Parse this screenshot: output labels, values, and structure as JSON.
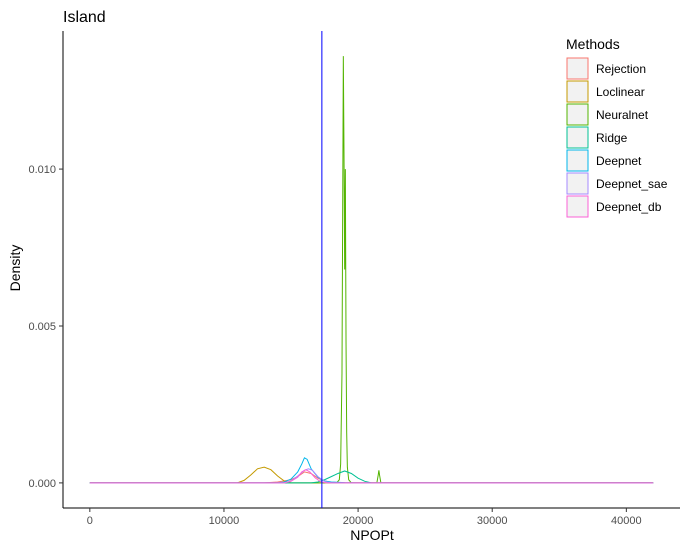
{
  "chart_data": {
    "type": "line",
    "title": "Island",
    "xlabel": "NPOPt",
    "ylabel": "Density",
    "xlim": [
      -2000,
      44000
    ],
    "ylim": [
      -0.0008,
      0.0144
    ],
    "xticks": [
      0,
      10000,
      20000,
      30000,
      40000
    ],
    "xtick_labels": [
      "0",
      "10000",
      "20000",
      "30000",
      "40000"
    ],
    "yticks": [
      0.0,
      0.005,
      0.01
    ],
    "ytick_labels": [
      "0.000",
      "0.005",
      "0.010"
    ],
    "grid": false,
    "legend_title": "Methods",
    "legend_position": "top-right",
    "reference_line": {
      "x": 17300,
      "color": "#0000ff"
    },
    "series": [
      {
        "name": "Rejection",
        "color": "#F8766D",
        "x": [
          0,
          13000,
          14000,
          15000,
          15500,
          16000,
          16500,
          17000,
          17500,
          18000,
          19000,
          42000
        ],
        "y": [
          0,
          0,
          3e-05,
          0.0001,
          0.0002,
          0.00035,
          0.0003,
          0.00015,
          6e-05,
          2e-05,
          0,
          0
        ]
      },
      {
        "name": "Loclinear",
        "color": "#C49A00",
        "x": [
          0,
          11000,
          11500,
          12000,
          12500,
          13000,
          13500,
          14000,
          14500,
          15000,
          42000
        ],
        "y": [
          0,
          0,
          8e-05,
          0.00025,
          0.00045,
          0.0005,
          0.00042,
          0.00022,
          6e-05,
          0,
          0
        ]
      },
      {
        "name": "Neuralnet",
        "color": "#53B400",
        "x": [
          0,
          18400,
          18600,
          18700,
          18800,
          18850,
          18900,
          18950,
          19000,
          19050,
          19100,
          19150,
          19200,
          19300,
          19500,
          21400,
          21500,
          21550,
          21600,
          21700,
          42000
        ],
        "y": [
          0,
          0,
          0.0001,
          0.0006,
          0.0035,
          0.0085,
          0.0136,
          0.0105,
          0.0068,
          0.01,
          0.0045,
          0.0016,
          0.0005,
          0.0001,
          0,
          0,
          0.00025,
          0.0004,
          0.00025,
          0,
          0
        ]
      },
      {
        "name": "Ridge",
        "color": "#00C094",
        "x": [
          0,
          16500,
          17000,
          17500,
          18000,
          18500,
          19000,
          19500,
          20000,
          20500,
          21000,
          42000
        ],
        "y": [
          0,
          0,
          3e-05,
          0.0001,
          0.0002,
          0.0003,
          0.00038,
          0.0003,
          0.00015,
          5e-05,
          0,
          0
        ]
      },
      {
        "name": "Deepnet",
        "color": "#00B6EB",
        "x": [
          0,
          14000,
          14500,
          15000,
          15500,
          15800,
          16000,
          16200,
          16500,
          17000,
          17500,
          18000,
          19000,
          20000,
          42000
        ],
        "y": [
          0,
          0,
          3e-05,
          0.00012,
          0.00035,
          0.0006,
          0.0008,
          0.00075,
          0.00045,
          0.00018,
          6e-05,
          3e-05,
          1e-05,
          0,
          0
        ]
      },
      {
        "name": "Deepnet_sae",
        "color": "#A58AFF",
        "x": [
          0,
          14500,
          15000,
          15500,
          16000,
          16300,
          16600,
          17000,
          17500,
          18000,
          42000
        ],
        "y": [
          0,
          0,
          6e-05,
          0.00022,
          0.0004,
          0.00045,
          0.0004,
          0.0002,
          5e-05,
          0,
          0
        ]
      },
      {
        "name": "Deepnet_db",
        "color": "#FB61D7",
        "x": [
          0,
          14500,
          15000,
          15500,
          15800,
          16100,
          16400,
          16800,
          17200,
          17600,
          42000
        ],
        "y": [
          0,
          0,
          5e-05,
          0.00018,
          0.00035,
          0.00042,
          0.00035,
          0.00016,
          4e-05,
          0,
          0
        ]
      }
    ]
  }
}
